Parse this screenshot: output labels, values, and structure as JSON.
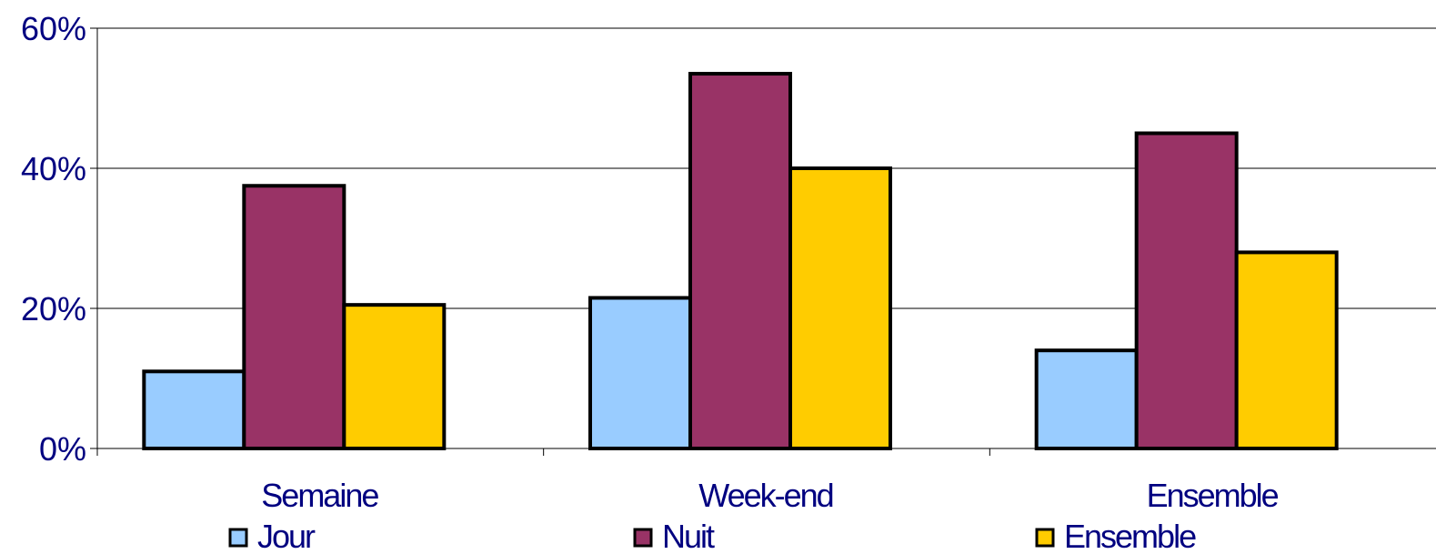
{
  "chart_data": {
    "type": "bar",
    "categories": [
      "Semaine",
      "Week-end",
      "Ensemble"
    ],
    "series": [
      {
        "name": "Jour",
        "color": "#99CCFF",
        "values": [
          11,
          21.5,
          14
        ]
      },
      {
        "name": "Nuit",
        "color": "#993366",
        "values": [
          37.5,
          53.5,
          45
        ]
      },
      {
        "name": "Ensemble",
        "color": "#FFCC00",
        "values": [
          20.5,
          40,
          28
        ]
      }
    ],
    "ylim": [
      0,
      60
    ],
    "yticks": [
      0,
      20,
      40,
      60
    ],
    "ytick_labels": [
      "0%",
      "20%",
      "40%",
      "60%"
    ],
    "grid": true,
    "legend_position": "bottom",
    "text_color": "#000080",
    "border_color": "#000000"
  }
}
